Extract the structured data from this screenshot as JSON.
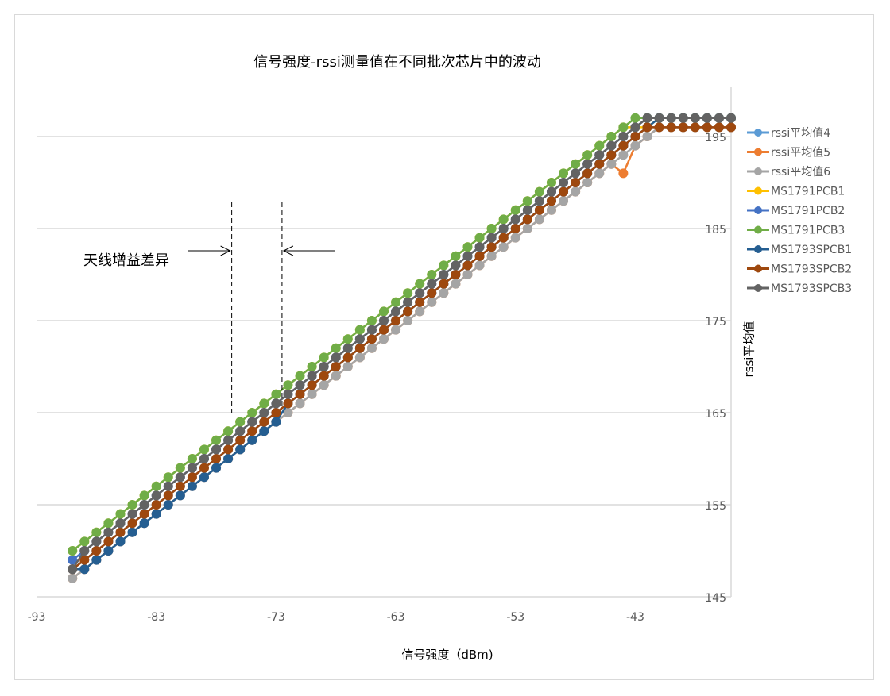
{
  "chart_data": {
    "type": "line",
    "title": "信号强度-rssi测量值在不同批次芯片中的波动",
    "xlabel": "信号强度（dBm)",
    "ylabel": "rssi平均值",
    "xlim": [
      -93,
      -35
    ],
    "ylim": [
      145,
      200
    ],
    "xticks": [
      -93,
      -83,
      -73,
      -63,
      -53,
      -43
    ],
    "yticks": [
      145,
      155,
      165,
      175,
      185,
      195
    ],
    "y_axis_side": "right",
    "grid": "horizontal",
    "legend_position": "right",
    "markers": "circle",
    "annotation": {
      "text": "天线增益差异",
      "dashed_lines_x": [
        -76.7,
        -72.5
      ]
    },
    "x": [
      -90,
      -89,
      -88,
      -87,
      -86,
      -85,
      -84,
      -83,
      -82,
      -81,
      -80,
      -79,
      -78,
      -77,
      -76,
      -75,
      -74,
      -73,
      -72,
      -71,
      -70,
      -69,
      -68,
      -67,
      -66,
      -65,
      -64,
      -63,
      -62,
      -61,
      -60,
      -59,
      -58,
      -57,
      -56,
      -55,
      -54,
      -53,
      -52,
      -51,
      -50,
      -49,
      -48,
      -47,
      -46,
      -45,
      -44,
      -43,
      -42,
      -41,
      -40,
      -39,
      -38,
      -37,
      -36,
      -35
    ],
    "series": [
      {
        "name": "rssi平均值4",
        "color": "#5B9BD5",
        "values": [
          148,
          149,
          150,
          151,
          152,
          153,
          154,
          155,
          156,
          157,
          158,
          159,
          160,
          161,
          162,
          163,
          164,
          165,
          166,
          167,
          168,
          169,
          170,
          171,
          172,
          173,
          174,
          175,
          176,
          177,
          178,
          179,
          180,
          181,
          182,
          183,
          184,
          185,
          186,
          187,
          188,
          189,
          190,
          191,
          192,
          193,
          194,
          195,
          196,
          196,
          196,
          196,
          196,
          196,
          196,
          196
        ]
      },
      {
        "name": "rssi平均值5",
        "color": "#ED7D31",
        "values": [
          147,
          148,
          149,
          150,
          151,
          152,
          153,
          154,
          155,
          156,
          157,
          158,
          159,
          160,
          161,
          162,
          163,
          164,
          165,
          166,
          167,
          168,
          169,
          170,
          171,
          172,
          173,
          174,
          175,
          176,
          177,
          178,
          179,
          180,
          181,
          182,
          183,
          184,
          185,
          186,
          187,
          188,
          189,
          190,
          191,
          192,
          191,
          194,
          195,
          196,
          196,
          196,
          196,
          196,
          196,
          196
        ]
      },
      {
        "name": "rssi平均值6",
        "color": "#A5A5A5",
        "values": [
          147,
          148,
          149,
          150,
          151,
          152,
          153,
          154,
          155,
          156,
          157,
          158,
          159,
          160,
          161,
          162,
          163,
          164,
          165,
          166,
          167,
          168,
          169,
          170,
          171,
          172,
          173,
          174,
          175,
          176,
          177,
          178,
          179,
          180,
          181,
          182,
          183,
          184,
          185,
          186,
          187,
          188,
          189,
          190,
          191,
          192,
          193,
          194,
          195,
          196,
          196,
          196,
          196,
          196,
          196,
          196
        ]
      },
      {
        "name": "MS1791PCB1",
        "color": "#FFC000",
        "values": [
          150,
          151,
          152,
          153,
          154,
          155,
          156,
          157,
          158,
          159,
          160,
          161,
          162,
          163,
          164,
          165,
          166,
          167,
          168,
          169,
          170,
          171,
          172,
          173,
          174,
          175,
          176,
          177,
          178,
          179,
          180,
          181,
          182,
          183,
          184,
          185,
          186,
          187,
          188,
          189,
          190,
          191,
          192,
          193,
          194,
          195,
          196,
          196,
          196,
          197,
          197,
          197,
          197,
          197,
          197,
          197
        ]
      },
      {
        "name": "MS1791PCB2",
        "color": "#4472C4",
        "values": [
          149,
          150,
          151,
          152,
          153,
          154,
          155,
          156,
          157,
          158,
          159,
          160,
          161,
          162,
          163,
          164,
          165,
          166,
          167,
          168,
          169,
          170,
          171,
          172,
          173,
          174,
          175,
          176,
          177,
          178,
          179,
          180,
          181,
          182,
          183,
          184,
          185,
          186,
          187,
          188,
          189,
          190,
          191,
          192,
          193,
          194,
          195,
          196,
          197,
          197,
          197,
          197,
          197,
          197,
          197,
          197
        ]
      },
      {
        "name": "MS1791PCB3",
        "color": "#70AD47",
        "values": [
          150,
          151,
          152,
          153,
          154,
          155,
          156,
          157,
          158,
          159,
          160,
          161,
          162,
          163,
          164,
          165,
          166,
          167,
          168,
          169,
          170,
          171,
          172,
          173,
          174,
          175,
          176,
          177,
          178,
          179,
          180,
          181,
          182,
          183,
          184,
          185,
          186,
          187,
          188,
          189,
          190,
          191,
          192,
          193,
          194,
          195,
          196,
          197,
          197,
          197,
          197,
          197,
          197,
          197,
          197,
          197
        ]
      },
      {
        "name": "MS1793SPCB1",
        "color": "#255E91",
        "values": [
          148,
          148,
          149,
          150,
          151,
          152,
          153,
          154,
          155,
          156,
          157,
          158,
          159,
          160,
          161,
          162,
          163,
          164,
          166,
          167,
          168,
          169,
          170,
          171,
          172,
          173,
          174,
          175,
          176,
          177,
          178,
          179,
          180,
          181,
          182,
          183,
          184,
          185,
          186,
          187,
          188,
          189,
          190,
          191,
          192,
          193,
          194,
          195,
          196,
          197,
          197,
          197,
          197,
          197,
          197,
          197
        ]
      },
      {
        "name": "MS1793SPCB2",
        "color": "#9E480E",
        "values": [
          148,
          149,
          150,
          151,
          152,
          153,
          154,
          155,
          156,
          157,
          158,
          159,
          160,
          161,
          162,
          163,
          164,
          165,
          166,
          167,
          168,
          169,
          170,
          171,
          172,
          173,
          174,
          175,
          176,
          177,
          178,
          179,
          180,
          181,
          182,
          183,
          184,
          185,
          186,
          187,
          188,
          189,
          190,
          191,
          192,
          193,
          194,
          195,
          196,
          196,
          196,
          196,
          196,
          196,
          196,
          196
        ]
      },
      {
        "name": "MS1793SPCB3",
        "color": "#636363",
        "values": [
          148,
          150,
          151,
          152,
          153,
          154,
          155,
          156,
          157,
          158,
          159,
          160,
          161,
          162,
          163,
          164,
          165,
          166,
          167,
          168,
          169,
          170,
          171,
          172,
          173,
          174,
          175,
          176,
          177,
          178,
          179,
          180,
          181,
          182,
          183,
          184,
          185,
          186,
          187,
          188,
          189,
          190,
          191,
          192,
          193,
          194,
          195,
          196,
          197,
          197,
          197,
          197,
          197,
          197,
          197,
          197
        ]
      }
    ]
  }
}
